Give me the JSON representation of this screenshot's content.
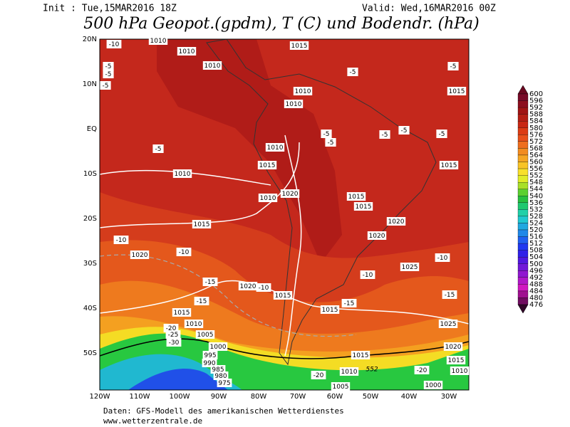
{
  "header": {
    "init": "Init : Tue,15MAR2016 18Z",
    "valid": "Valid: Wed,16MAR2016 00Z",
    "title": "500 hPa Geopot.(gpdm), T (C) und Bodendr. (hPa)"
  },
  "map": {
    "lat_labels": [
      "20N",
      "10N",
      "EQ",
      "10S",
      "20S",
      "30S",
      "40S",
      "50S"
    ],
    "lon_labels": [
      "120W",
      "110W",
      "100W",
      "90W",
      "80W",
      "70W",
      "60W",
      "50W",
      "40W",
      "30W"
    ],
    "pressure_labels": [
      "1010",
      "1010",
      "1015",
      "1010",
      "1010",
      "1010",
      "1015",
      "1010",
      "1015",
      "1010",
      "1020",
      "1010",
      "1015",
      "1015",
      "1015",
      "1015",
      "1020",
      "1020",
      "1020",
      "1025",
      "1020",
      "1015",
      "1015",
      "1015",
      "1025",
      "1010",
      "1005",
      "1000",
      "995",
      "990",
      "985",
      "980",
      "975",
      "1015",
      "1020",
      "1015",
      "1010",
      "1010",
      "1000",
      "1005"
    ],
    "temperature_labels": [
      "-10",
      "-5",
      "-5",
      "-5",
      "-5",
      "-5",
      "-5",
      "-5",
      "-5",
      "-5",
      "-5",
      "-5",
      "-10",
      "-10",
      "-10",
      "-15",
      "-15",
      "-10",
      "-15",
      "-20",
      "-25",
      "-30",
      "-10",
      "-15",
      "-20",
      "-20"
    ],
    "geopotential_label": "552"
  },
  "colorbar": {
    "labels": [
      600,
      596,
      592,
      588,
      584,
      580,
      576,
      572,
      568,
      564,
      560,
      556,
      552,
      548,
      544,
      540,
      536,
      532,
      528,
      524,
      520,
      516,
      512,
      508,
      504,
      500,
      496,
      492,
      488,
      484,
      480,
      476
    ]
  },
  "footer": {
    "source": "Daten: GFS-Modell des amerikanischen Wetterdienstes",
    "site": "www.wetterzentrale.de"
  }
}
